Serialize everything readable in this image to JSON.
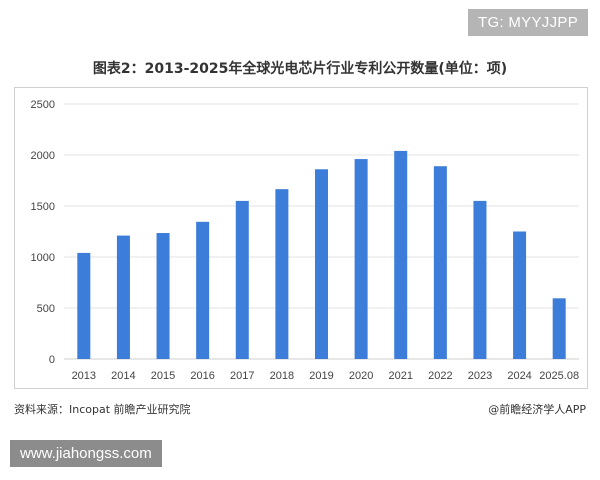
{
  "watermark_top": "TG: MYYJJPP",
  "footer": {
    "source": "资料来源：Incopat 前瞻产业研究院",
    "brand": "@前瞻经济学人APP"
  },
  "watermark_bottom": "www.jiahongss.com",
  "colors": {
    "bar": "#3b7dd8",
    "grid": "#e3e3e3",
    "axis_text": "#444444"
  },
  "chart_data": {
    "type": "bar",
    "title": "图表2：2013-2025年全球光电芯片行业专利公开数量(单位：项)",
    "categories": [
      "2013",
      "2014",
      "2015",
      "2016",
      "2017",
      "2018",
      "2019",
      "2020",
      "2021",
      "2022",
      "2023",
      "2024",
      "2025.08"
    ],
    "values": [
      1040,
      1210,
      1235,
      1345,
      1550,
      1665,
      1860,
      1960,
      2040,
      1890,
      1550,
      1250,
      595
    ],
    "yticks": [
      "0",
      "500",
      "1000",
      "1500",
      "2000",
      "2500"
    ],
    "ylim": [
      0,
      2500
    ],
    "xlabel": "",
    "ylabel": "",
    "grid": true,
    "legend": "none"
  }
}
